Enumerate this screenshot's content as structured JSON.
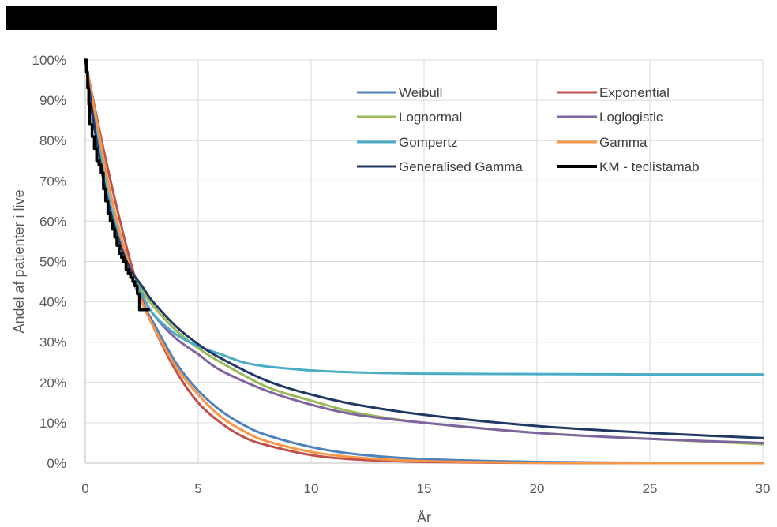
{
  "chart_data": {
    "type": "line",
    "title": "",
    "xlabel": "År",
    "ylabel": "Andel af patienter i live",
    "xlim": [
      0,
      30
    ],
    "ylim": [
      0,
      100
    ],
    "x_ticks": [
      "0",
      "5",
      "10",
      "15",
      "20",
      "25",
      "30"
    ],
    "y_ticks": [
      "0%",
      "10%",
      "20%",
      "30%",
      "40%",
      "50%",
      "60%",
      "70%",
      "80%",
      "90%",
      "100%"
    ],
    "grid": true,
    "legend_position": "top-right",
    "y_unit": "%",
    "series": [
      {
        "name": "Weibull",
        "color": "#4f81bd",
        "style": "line",
        "x": [
          0,
          0.5,
          1,
          1.5,
          2,
          2.5,
          3,
          4,
          5,
          6,
          7,
          8,
          10,
          12,
          15,
          20,
          25,
          30
        ],
        "y": [
          100,
          82,
          66,
          55,
          47,
          40,
          35,
          25,
          18,
          13,
          9.5,
          7,
          4,
          2.2,
          1,
          0.3,
          0.1,
          0
        ]
      },
      {
        "name": "Exponential",
        "color": "#c0504d",
        "style": "line",
        "x": [
          0,
          0.5,
          1,
          1.5,
          2,
          2.5,
          3,
          4,
          5,
          6,
          7,
          8,
          10,
          12,
          15,
          20,
          25,
          30
        ],
        "y": [
          100,
          86,
          73,
          61,
          50,
          41,
          34,
          23,
          15,
          10,
          6.5,
          4.5,
          2,
          0.9,
          0.3,
          0.05,
          0,
          0
        ]
      },
      {
        "name": "Lognormal",
        "color": "#9bbb59",
        "style": "line",
        "x": [
          0,
          0.5,
          1,
          1.5,
          2,
          2.5,
          3,
          4,
          5,
          6,
          8,
          10,
          12,
          15,
          20,
          25,
          30
        ],
        "y": [
          100,
          80,
          65,
          55,
          48,
          43,
          39,
          33,
          28.5,
          25,
          19,
          15.5,
          12.5,
          10,
          7.5,
          6,
          4.7
        ]
      },
      {
        "name": "Loglogistic",
        "color": "#8064a2",
        "style": "line",
        "x": [
          0,
          0.5,
          1,
          1.5,
          2,
          2.5,
          3,
          4,
          5,
          6,
          8,
          10,
          12,
          15,
          20,
          25,
          30
        ],
        "y": [
          100,
          80,
          65,
          55,
          47,
          42,
          37,
          31,
          27,
          23,
          18,
          14.5,
          12,
          10,
          7.5,
          6,
          5
        ]
      },
      {
        "name": "Gompertz",
        "color": "#4bacc6",
        "style": "line",
        "x": [
          0,
          0.5,
          1,
          1.5,
          2,
          2.5,
          3,
          4,
          5,
          6,
          7,
          8,
          10,
          12,
          15,
          20,
          25,
          30
        ],
        "y": [
          100,
          82,
          67,
          56,
          48,
          42,
          37,
          32,
          29,
          27,
          25,
          24,
          23,
          22.5,
          22.2,
          22.1,
          22,
          22
        ]
      },
      {
        "name": "Gamma",
        "color": "#f79646",
        "style": "line",
        "x": [
          0,
          0.5,
          1,
          1.5,
          2,
          2.5,
          3,
          4,
          5,
          6,
          7,
          8,
          10,
          12,
          15,
          20,
          25,
          30
        ],
        "y": [
          100,
          85,
          70,
          58,
          48,
          40,
          34,
          24,
          17,
          11.5,
          8,
          5.5,
          2.8,
          1.4,
          0.5,
          0.1,
          0,
          0
        ]
      },
      {
        "name": "Generalised Gamma",
        "color": "#1f3864",
        "style": "line",
        "x": [
          0,
          0.5,
          1,
          1.5,
          2,
          2.5,
          3,
          4,
          5,
          6,
          8,
          10,
          12,
          15,
          20,
          25,
          30
        ],
        "y": [
          100,
          80,
          65,
          55,
          48,
          44,
          40,
          34,
          29.5,
          26,
          20.5,
          17,
          14.5,
          12,
          9.2,
          7.5,
          6.2
        ]
      },
      {
        "name": "KM - teclistamab",
        "color": "#000000",
        "style": "step",
        "x": [
          0,
          0.05,
          0.1,
          0.15,
          0.2,
          0.3,
          0.4,
          0.5,
          0.6,
          0.7,
          0.8,
          0.9,
          1.0,
          1.1,
          1.2,
          1.3,
          1.4,
          1.5,
          1.6,
          1.7,
          1.8,
          1.9,
          2.0,
          2.1,
          2.2,
          2.3,
          2.4,
          2.8
        ],
        "y": [
          100,
          97,
          93,
          89,
          84,
          81,
          78,
          75,
          74,
          72,
          68,
          65,
          62,
          60,
          58,
          56,
          54,
          52,
          51,
          50,
          48,
          47,
          46,
          45,
          44,
          42,
          38,
          38
        ]
      }
    ]
  }
}
